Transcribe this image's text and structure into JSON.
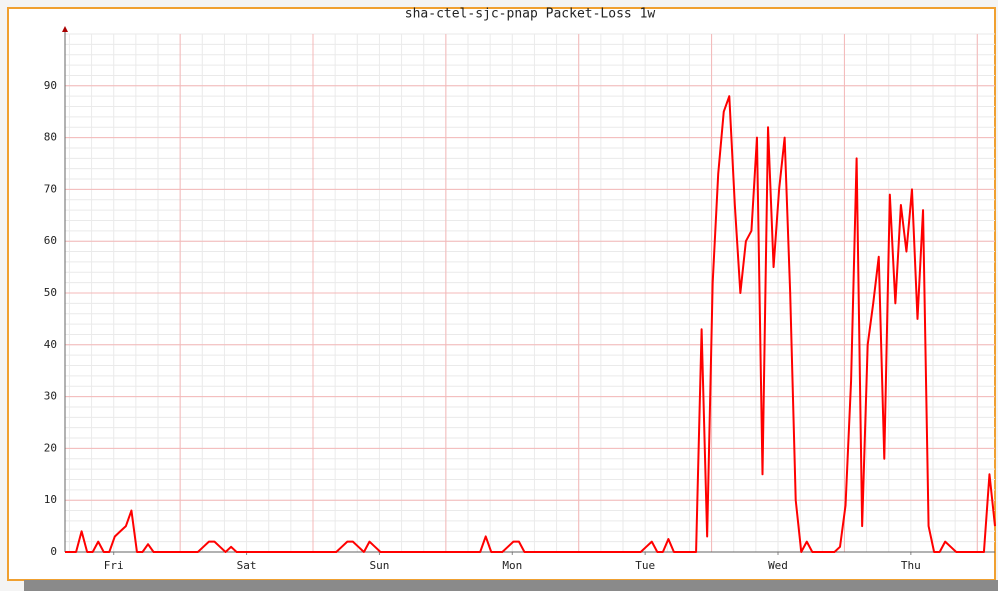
{
  "chart_data": {
    "type": "line",
    "title": "sha-ctel-sjc-pnap Packet-Loss 1w",
    "x": [
      0,
      1,
      2,
      3,
      4,
      5,
      6,
      7,
      8,
      9,
      10,
      11,
      12,
      13,
      14,
      15,
      16,
      17,
      18,
      19,
      20,
      21,
      22,
      23,
      24,
      25,
      26,
      27,
      28,
      29,
      30,
      31,
      32,
      33,
      34,
      35,
      36,
      37,
      38,
      39,
      40,
      41,
      42,
      43,
      44,
      45,
      46,
      47,
      48,
      49,
      50,
      51,
      52,
      53,
      54,
      55,
      56,
      57,
      58,
      59,
      60,
      61,
      62,
      63,
      64,
      65,
      66,
      67,
      68,
      69,
      70,
      71,
      72,
      73,
      74,
      75,
      76,
      77,
      78,
      79,
      80,
      81,
      82,
      83,
      84,
      85,
      86,
      87,
      88,
      89,
      90,
      91,
      92,
      93,
      94,
      95,
      96,
      97,
      98,
      99,
      100,
      101,
      102,
      103,
      104,
      105,
      106,
      107,
      108,
      109,
      110,
      111,
      112,
      113,
      114,
      115,
      116,
      117,
      118,
      119,
      120,
      121,
      122,
      123,
      124,
      125,
      126,
      127,
      128,
      129,
      130,
      131,
      132,
      133,
      134,
      135,
      136,
      137,
      138,
      139,
      140,
      141,
      142,
      143,
      144,
      145,
      146,
      147,
      148,
      149,
      150,
      151,
      152,
      153,
      154,
      155,
      156,
      157,
      158,
      159,
      160,
      161,
      162,
      163,
      164,
      165,
      166,
      167,
      168
    ],
    "series": [
      {
        "color": "#ff0000",
        "values": [
          0,
          0,
          0,
          4,
          0,
          0,
          2,
          0,
          0,
          3,
          4,
          5,
          8,
          0,
          0,
          1.5,
          0,
          0,
          0,
          0,
          0,
          0,
          0,
          0,
          0,
          1,
          2,
          2,
          1,
          0,
          1,
          0,
          0,
          0,
          0,
          0,
          0,
          0,
          0,
          0,
          0,
          0,
          0,
          0,
          0,
          0,
          0,
          0,
          0,
          0,
          1,
          2,
          2,
          1,
          0,
          2,
          1,
          0,
          0,
          0,
          0,
          0,
          0,
          0,
          0,
          0,
          0,
          0,
          0,
          0,
          0,
          0,
          0,
          0,
          0,
          0,
          3,
          0,
          0,
          0,
          1,
          2,
          2,
          0,
          0,
          0,
          0,
          0,
          0,
          0,
          0,
          0,
          0,
          0,
          0,
          0,
          0,
          0,
          0,
          0,
          0,
          0,
          0,
          0,
          0,
          1,
          2,
          0,
          0,
          2.5,
          0,
          0,
          0,
          0,
          0,
          43,
          3,
          52,
          73,
          85,
          88,
          67,
          50,
          60,
          62,
          80,
          15,
          82,
          55,
          70,
          80,
          50,
          10,
          0,
          2,
          0,
          0,
          0,
          0,
          0,
          1,
          9,
          33,
          76,
          5,
          40,
          48,
          57,
          18,
          69,
          48,
          67,
          58,
          70,
          45,
          66,
          5,
          0,
          0,
          2,
          1,
          0,
          0,
          0,
          0,
          0,
          0,
          15,
          5
        ]
      }
    ],
    "xlim": [
      0,
      168
    ],
    "xticks": [
      {
        "value": 8.8,
        "label": "Fri"
      },
      {
        "value": 32.8,
        "label": "Sat"
      },
      {
        "value": 56.8,
        "label": "Sun"
      },
      {
        "value": 80.8,
        "label": "Mon"
      },
      {
        "value": 104.8,
        "label": "Tue"
      },
      {
        "value": 128.8,
        "label": "Wed"
      },
      {
        "value": 152.8,
        "label": "Thu"
      }
    ],
    "ylim": [
      0,
      100
    ],
    "yticks": [
      0,
      10,
      20,
      30,
      40,
      50,
      60,
      70,
      80,
      90
    ],
    "grid": true
  }
}
